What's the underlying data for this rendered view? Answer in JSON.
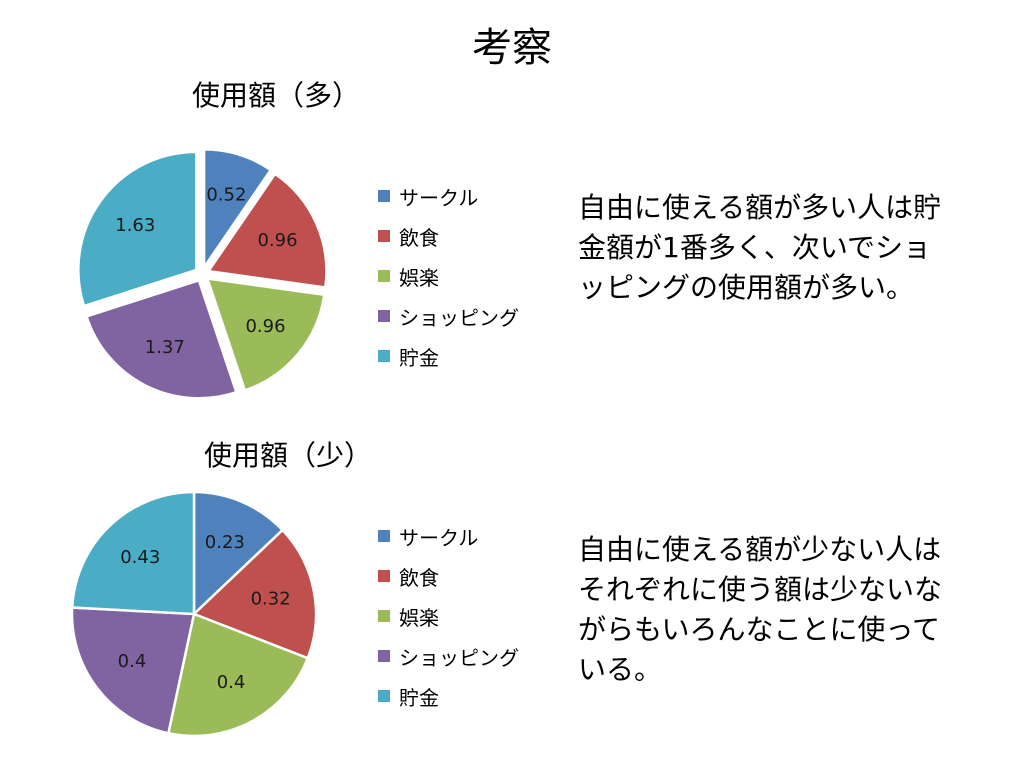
{
  "slide_title": "考察",
  "chart_data": [
    {
      "type": "pie",
      "title": "使用額（多）",
      "categories": [
        "サークル",
        "飲食",
        "娯楽",
        "ショッピング",
        "貯金"
      ],
      "values": [
        0.52,
        0.96,
        0.96,
        1.37,
        1.63
      ],
      "value_labels": [
        "0.52",
        "0.96",
        "0.96",
        "1.37",
        "1.63"
      ],
      "colors": [
        "#4f81bd",
        "#c0504d",
        "#9bbb59",
        "#8064a2",
        "#4bacc6"
      ],
      "legend_position": "right",
      "exploded": true
    },
    {
      "type": "pie",
      "title": "使用額（少）",
      "categories": [
        "サークル",
        "飲食",
        "娯楽",
        "ショッピング",
        "貯金"
      ],
      "values": [
        0.23,
        0.32,
        0.4,
        0.4,
        0.43
      ],
      "value_labels": [
        "0.23",
        "0.32",
        "0.4",
        "0.4",
        "0.43"
      ],
      "colors": [
        "#4f81bd",
        "#c0504d",
        "#9bbb59",
        "#8064a2",
        "#4bacc6"
      ],
      "legend_position": "right",
      "exploded": false
    }
  ],
  "commentary": [
    "自由に使える額が多い人は貯金額が1番多く、次いでショッピングの使用額が多い。",
    "自由に使える額が少ない人はそれぞれに使う額は少ないながらもいろんなことに使っている。"
  ]
}
